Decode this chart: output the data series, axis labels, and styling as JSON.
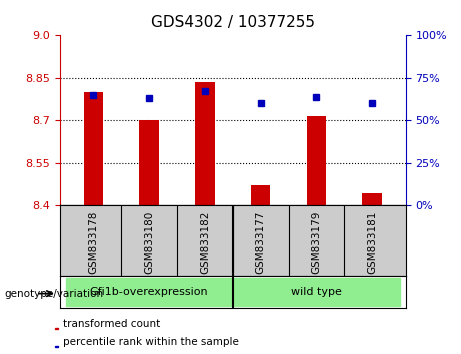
{
  "title": "GDS4302 / 10377255",
  "samples": [
    "GSM833178",
    "GSM833180",
    "GSM833182",
    "GSM833177",
    "GSM833179",
    "GSM833181"
  ],
  "transformed_count": [
    8.8,
    8.7,
    8.835,
    8.47,
    8.715,
    8.445
  ],
  "percentile_rank": [
    65,
    63,
    67,
    60,
    64,
    60
  ],
  "ylim_left": [
    8.4,
    9.0
  ],
  "ylim_right": [
    0,
    100
  ],
  "yticks_left": [
    8.4,
    8.55,
    8.7,
    8.85,
    9.0
  ],
  "yticks_right": [
    0,
    25,
    50,
    75,
    100
  ],
  "bar_color": "#cc0000",
  "dot_color": "#0000bb",
  "group0_indices": [
    0,
    1,
    2
  ],
  "group1_indices": [
    3,
    4,
    5
  ],
  "group0_label": "Gfi1b-overexpression",
  "group1_label": "wild type",
  "group_color": "#90ee90",
  "sample_bg_color": "#cccccc",
  "genotype_label": "genotype/variation",
  "legend_red_label": "transformed count",
  "legend_blue_label": "percentile rank within the sample",
  "grid_lines": [
    8.55,
    8.7,
    8.85
  ],
  "bar_width": 0.35,
  "left_tick_color": "#cc0000",
  "right_tick_color": "#0000bb",
  "title_fontsize": 11
}
